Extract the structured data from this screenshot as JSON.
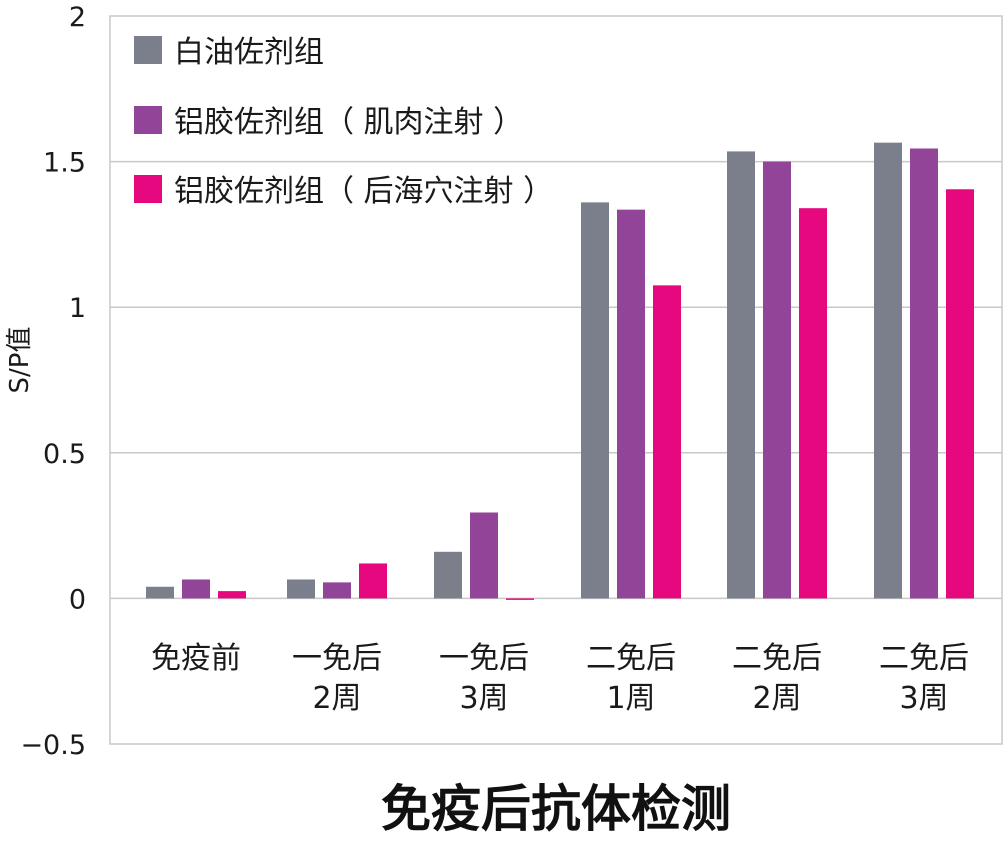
{
  "chart_data": {
    "type": "bar",
    "title": "免疫后抗体检测",
    "xlabel": "",
    "ylabel": "S/P值",
    "ylim": [
      -0.5,
      2
    ],
    "yticks": [
      "-0.5",
      "0",
      "0.5",
      "1",
      "1.5",
      "2"
    ],
    "grid": "horizontal",
    "legend_position": "top-left",
    "categories": [
      [
        "免疫前"
      ],
      [
        "一免后",
        "2周"
      ],
      [
        "一免后",
        "3周"
      ],
      [
        "二免后",
        "1周"
      ],
      [
        "二免后",
        "2周"
      ],
      [
        "二免后",
        "3周"
      ]
    ],
    "series": [
      {
        "name": "白油佐剂组",
        "color": "#7b7f8b",
        "values": [
          0.04,
          0.065,
          0.16,
          1.36,
          1.535,
          1.565
        ]
      },
      {
        "name": "铝胶佐剂组（ 肌肉注射 ）",
        "color": "#924498",
        "values": [
          0.065,
          0.055,
          0.295,
          1.335,
          1.5,
          1.545
        ]
      },
      {
        "name": "铝胶佐剂组（ 后海穴注射 ）",
        "color": "#e5087e",
        "values": [
          0.025,
          0.12,
          -0.005,
          1.075,
          1.34,
          1.405
        ]
      }
    ]
  }
}
